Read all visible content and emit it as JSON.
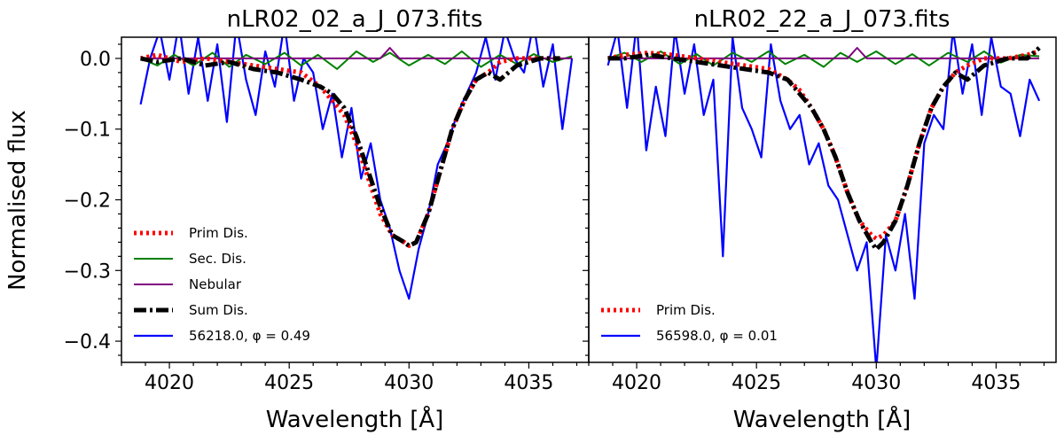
{
  "figure": {
    "ylabel": "Normalised flux",
    "xlabel": "Wavelength [Å]"
  },
  "colors": {
    "prim": "#ff0000",
    "sec": "#008000",
    "nebular": "#800080",
    "sum": "#000000",
    "obs": "#0000ff"
  },
  "chart_data": [
    {
      "type": "line",
      "title": "nLR02_02_a_J_073.fits",
      "xlabel": "Wavelength [Å]",
      "ylabel": "Normalised flux",
      "xlim": [
        4018,
        4037.5
      ],
      "ylim": [
        -0.43,
        0.03
      ],
      "xticks": [
        4020,
        4025,
        4030,
        4035
      ],
      "xtick_labels": [
        "4020",
        "4025",
        "4030",
        "4035"
      ],
      "yticks": [
        0.0,
        -0.1,
        -0.2,
        -0.3,
        -0.4
      ],
      "ytick_labels": [
        "0.0",
        "−0.1",
        "−0.2",
        "−0.3",
        "−0.4"
      ],
      "legend_position": "lower-left",
      "series": [
        {
          "key": "prim",
          "name": "Prim Dis.",
          "style": "dotted",
          "x": [
            4018.8,
            4019.5,
            4020.5,
            4021.5,
            4022.5,
            4023.5,
            4024.5,
            4025.5,
            4026.3,
            4026.8,
            4027.3,
            4027.8,
            4028.3,
            4028.8,
            4029.3,
            4029.8,
            4030.0,
            4030.3,
            4030.8,
            4031.3,
            4031.8,
            4032.3,
            4032.8,
            4033.3,
            4033.8,
            4034.5,
            4035.5,
            4036.3
          ],
          "y": [
            0.0,
            0.005,
            -0.005,
            0.0,
            -0.005,
            -0.01,
            -0.015,
            -0.02,
            -0.04,
            -0.06,
            -0.08,
            -0.12,
            -0.17,
            -0.22,
            -0.25,
            -0.26,
            -0.265,
            -0.26,
            -0.22,
            -0.16,
            -0.1,
            -0.06,
            -0.03,
            -0.02,
            -0.005,
            0.0,
            0.0,
            0.0
          ]
        },
        {
          "key": "sec",
          "name": "Sec. Dis.",
          "style": "solid",
          "x": [
            4018.8,
            4019.5,
            4020.2,
            4021.0,
            4021.8,
            4022.5,
            4023.2,
            4024.0,
            4024.8,
            4025.5,
            4026.2,
            4027.0,
            4027.8,
            4028.5,
            4029.2,
            4030.0,
            4030.8,
            4031.5,
            4032.2,
            4033.0,
            4033.8,
            4034.5,
            4035.2,
            4036.0,
            4036.8
          ],
          "y": [
            0.0,
            -0.01,
            0.005,
            -0.01,
            0.008,
            -0.012,
            0.005,
            -0.008,
            0.008,
            -0.01,
            0.005,
            -0.015,
            0.01,
            -0.005,
            0.008,
            -0.01,
            0.005,
            -0.008,
            0.01,
            -0.012,
            0.005,
            -0.008,
            0.006,
            -0.005,
            0.003
          ]
        },
        {
          "key": "nebular",
          "name": "Nebular",
          "style": "solid",
          "x": [
            4018.8,
            4028.8,
            4029.2,
            4029.6,
            4036.8
          ],
          "y": [
            0.0,
            0.0,
            0.015,
            0.0,
            0.0
          ]
        },
        {
          "key": "sum",
          "name": "Sum Dis.",
          "style": "dashdot",
          "x": [
            4018.8,
            4019.5,
            4020.5,
            4021.5,
            4022.5,
            4023.5,
            4024.5,
            4025.5,
            4026.3,
            4026.8,
            4027.3,
            4027.8,
            4028.3,
            4028.8,
            4029.3,
            4029.8,
            4030.0,
            4030.3,
            4030.8,
            4031.3,
            4031.8,
            4032.3,
            4032.8,
            4033.3,
            4033.8,
            4034.5,
            4035.5,
            4036.3
          ],
          "y": [
            0.0,
            -0.005,
            0.0,
            -0.01,
            -0.005,
            -0.015,
            -0.02,
            -0.03,
            -0.04,
            -0.05,
            -0.07,
            -0.11,
            -0.16,
            -0.21,
            -0.25,
            -0.26,
            -0.265,
            -0.26,
            -0.22,
            -0.16,
            -0.1,
            -0.06,
            -0.03,
            -0.02,
            -0.03,
            -0.01,
            0.0,
            0.0
          ]
        },
        {
          "key": "obs",
          "name": "56218.0, φ = 0.49",
          "style": "solid",
          "x": [
            4018.8,
            4019.2,
            4019.6,
            4020.0,
            4020.4,
            4020.8,
            4021.2,
            4021.6,
            4022.0,
            4022.4,
            4022.8,
            4023.2,
            4023.6,
            4024.0,
            4024.4,
            4024.8,
            4025.2,
            4025.6,
            4026.0,
            4026.4,
            4026.8,
            4027.2,
            4027.6,
            4028.0,
            4028.4,
            4028.8,
            4029.2,
            4029.6,
            4030.0,
            4030.4,
            4030.8,
            4031.2,
            4031.6,
            4032.0,
            4032.4,
            4032.8,
            4033.2,
            4033.6,
            4034.0,
            4034.4,
            4034.8,
            4035.2,
            4035.6,
            4036.0,
            4036.4,
            4036.8
          ],
          "y": [
            -0.065,
            0.0,
            0.04,
            -0.03,
            0.05,
            -0.05,
            0.03,
            -0.06,
            0.02,
            -0.09,
            0.05,
            -0.03,
            -0.08,
            0.01,
            -0.04,
            0.05,
            -0.06,
            0.0,
            -0.02,
            -0.1,
            -0.05,
            -0.14,
            -0.07,
            -0.17,
            -0.12,
            -0.2,
            -0.24,
            -0.3,
            -0.34,
            -0.27,
            -0.22,
            -0.15,
            -0.12,
            -0.08,
            -0.05,
            -0.02,
            0.03,
            -0.03,
            0.04,
            0.0,
            -0.02,
            0.05,
            -0.04,
            0.02,
            -0.1,
            0.0
          ]
        }
      ]
    },
    {
      "type": "line",
      "title": "nLR02_22_a_J_073.fits",
      "xlabel": "Wavelength [Å]",
      "ylabel": "Normalised flux",
      "xlim": [
        4018,
        4037.5
      ],
      "ylim": [
        -0.43,
        0.03
      ],
      "xticks": [
        4020,
        4025,
        4030,
        4035
      ],
      "xtick_labels": [
        "4020",
        "4025",
        "4030",
        "4035"
      ],
      "yticks": [
        0.0,
        -0.1,
        -0.2,
        -0.3,
        -0.4
      ],
      "ytick_labels": [],
      "legend_position": "lower-left",
      "series": [
        {
          "key": "prim",
          "name": "Prim Dis.",
          "style": "dotted",
          "x": [
            4018.8,
            4019.5,
            4020.5,
            4021.5,
            4022.5,
            4023.5,
            4024.5,
            4025.5,
            4026.3,
            4026.8,
            4027.3,
            4027.8,
            4028.3,
            4028.8,
            4029.3,
            4029.8,
            4030.0,
            4030.3,
            4030.8,
            4031.3,
            4031.8,
            4032.3,
            4032.8,
            4033.3,
            4033.8,
            4034.5,
            4035.5,
            4036.3,
            4036.8
          ],
          "y": [
            0.0,
            0.005,
            0.008,
            0.005,
            0.0,
            -0.005,
            -0.01,
            -0.015,
            -0.03,
            -0.045,
            -0.07,
            -0.1,
            -0.14,
            -0.19,
            -0.23,
            -0.25,
            -0.255,
            -0.25,
            -0.23,
            -0.18,
            -0.12,
            -0.07,
            -0.04,
            -0.02,
            -0.01,
            0.0,
            0.0,
            0.005,
            0.01
          ]
        },
        {
          "key": "sec",
          "name": "Sec. Dis.",
          "style": "solid",
          "x": [
            4018.8,
            4019.5,
            4020.2,
            4021.0,
            4021.8,
            4022.5,
            4023.2,
            4024.0,
            4024.8,
            4025.5,
            4026.2,
            4027.0,
            4027.8,
            4028.5,
            4029.2,
            4030.0,
            4030.8,
            4031.5,
            4032.2,
            4033.0,
            4033.8,
            4034.5,
            4035.2,
            4036.0,
            4036.8
          ],
          "y": [
            0.0,
            0.008,
            -0.005,
            0.01,
            -0.008,
            0.006,
            -0.01,
            0.008,
            -0.005,
            0.01,
            -0.008,
            0.005,
            -0.012,
            0.008,
            -0.005,
            0.01,
            -0.008,
            0.006,
            -0.01,
            0.008,
            -0.005,
            0.01,
            -0.006,
            0.005,
            0.003
          ]
        },
        {
          "key": "nebular",
          "name": "Nebular",
          "style": "solid",
          "x": [
            4018.8,
            4028.8,
            4029.2,
            4029.6,
            4036.8
          ],
          "y": [
            0.0,
            0.0,
            0.015,
            0.0,
            0.0
          ]
        },
        {
          "key": "sum",
          "name": "Sum Dis.",
          "style": "dashdot",
          "x": [
            4018.8,
            4019.5,
            4020.5,
            4021.5,
            4022.5,
            4023.5,
            4024.5,
            4025.5,
            4026.3,
            4026.8,
            4027.3,
            4027.8,
            4028.3,
            4028.8,
            4029.3,
            4029.8,
            4030.0,
            4030.3,
            4030.8,
            4031.3,
            4031.8,
            4032.3,
            4032.8,
            4033.3,
            4033.8,
            4034.5,
            4035.5,
            4036.3,
            4036.8
          ],
          "y": [
            0.0,
            0.0,
            0.005,
            0.0,
            -0.005,
            -0.01,
            -0.015,
            -0.02,
            -0.03,
            -0.05,
            -0.07,
            -0.1,
            -0.14,
            -0.19,
            -0.23,
            -0.26,
            -0.27,
            -0.26,
            -0.23,
            -0.18,
            -0.12,
            -0.07,
            -0.04,
            -0.02,
            -0.03,
            -0.01,
            0.0,
            0.0,
            0.015
          ]
        },
        {
          "key": "obs",
          "name": "56598.0, φ = 0.01",
          "style": "solid",
          "x": [
            4018.8,
            4019.2,
            4019.6,
            4020.0,
            4020.4,
            4020.8,
            4021.2,
            4021.6,
            4022.0,
            4022.4,
            4022.8,
            4023.2,
            4023.6,
            4024.0,
            4024.4,
            4024.8,
            4025.2,
            4025.6,
            4026.0,
            4026.4,
            4026.8,
            4027.2,
            4027.6,
            4028.0,
            4028.4,
            4028.8,
            4029.2,
            4029.6,
            4030.0,
            4030.4,
            4030.8,
            4031.2,
            4031.6,
            4032.0,
            4032.4,
            4032.8,
            4033.2,
            4033.6,
            4034.0,
            4034.4,
            4034.8,
            4035.2,
            4035.6,
            4036.0,
            4036.4,
            4036.8
          ],
          "y": [
            -0.01,
            0.04,
            -0.07,
            0.05,
            -0.13,
            -0.04,
            -0.11,
            0.04,
            -0.05,
            0.02,
            -0.08,
            -0.03,
            -0.28,
            0.03,
            -0.07,
            -0.1,
            -0.14,
            0.02,
            -0.06,
            -0.1,
            -0.08,
            -0.15,
            -0.12,
            -0.18,
            -0.2,
            -0.25,
            -0.3,
            -0.26,
            -0.44,
            -0.25,
            -0.3,
            -0.22,
            -0.34,
            -0.12,
            -0.08,
            -0.1,
            0.04,
            -0.05,
            0.02,
            -0.08,
            0.03,
            -0.04,
            -0.05,
            -0.11,
            -0.03,
            -0.06
          ]
        }
      ]
    }
  ]
}
